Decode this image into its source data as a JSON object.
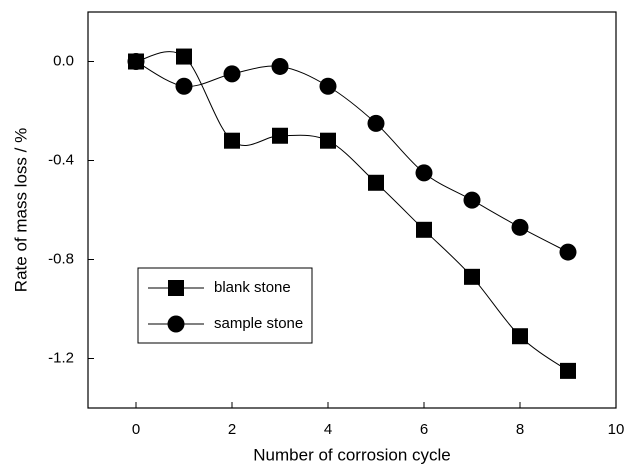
{
  "chart_data": {
    "type": "line",
    "x_label": "Number of corrosion cycle",
    "y_label": "Rate of mass loss / %",
    "x": [
      0,
      1,
      2,
      3,
      4,
      5,
      6,
      7,
      8,
      9
    ],
    "series": [
      {
        "name": "blank stone",
        "color": "#000000",
        "marker": "square",
        "values": [
          0,
          0.02,
          -0.32,
          -0.3,
          -0.32,
          -0.49,
          -0.68,
          -0.87,
          -1.11,
          -1.25
        ]
      },
      {
        "name": "sample stone",
        "color": "#000000",
        "marker": "circle",
        "values": [
          0,
          -0.1,
          -0.05,
          -0.02,
          -0.1,
          -0.25,
          -0.45,
          -0.56,
          -0.67,
          -0.77
        ]
      }
    ],
    "xlim": [
      -1,
      10
    ],
    "xticks": [
      0,
      2,
      4,
      6,
      8,
      10
    ],
    "ylim": [
      -1.4,
      0.2
    ],
    "yticks": [
      {
        "value": 0,
        "label": "0.0"
      },
      {
        "value": -0.4,
        "label": "-0.4"
      },
      {
        "value": -0.8,
        "label": "-0.8"
      },
      {
        "value": -1.2,
        "label": "-1.2"
      }
    ],
    "legend": "lower left",
    "grid": false
  }
}
